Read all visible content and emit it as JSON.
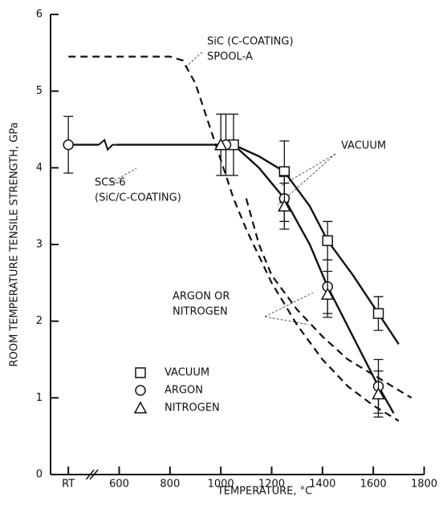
{
  "chart_data": {
    "type": "scatter",
    "xlabel": "TEMPERATURE, °C",
    "ylabel": "ROOM TEMPERATURE TENSILE STRENGTH, GPa",
    "xlim": [
      330,
      1800
    ],
    "ylim": [
      0,
      6
    ],
    "xticks": [
      {
        "value": 400,
        "label": "RT"
      },
      600,
      800,
      1000,
      1200,
      1400,
      1600,
      1800
    ],
    "yticks": [
      0,
      1,
      2,
      3,
      4,
      5,
      6
    ],
    "series": [
      {
        "name": "VACUUM",
        "marker": "square",
        "color": "#111",
        "x": [
          1050,
          1250,
          1420,
          1620
        ],
        "values": [
          4.3,
          3.95,
          3.05,
          2.1
        ],
        "errors": [
          0.4,
          0.4,
          0.25,
          0.22
        ]
      },
      {
        "name": "ARGON",
        "marker": "circle",
        "color": "#111",
        "x": [
          400,
          1020,
          1250,
          1420,
          1620
        ],
        "values": [
          4.3,
          4.3,
          3.6,
          2.45,
          1.15
        ],
        "errors": [
          0.37,
          0.4,
          0.3,
          0.35,
          0.35
        ]
      },
      {
        "name": "NITROGEN",
        "marker": "triangle",
        "color": "#111",
        "x": [
          1000,
          1250,
          1420,
          1620
        ],
        "values": [
          4.3,
          3.5,
          2.35,
          1.05
        ],
        "errors": [
          0.4,
          0.3,
          0.3,
          0.3
        ]
      }
    ],
    "curves": [
      {
        "dash": false,
        "x": [
          400,
          640,
          1000,
          1050,
          1150,
          1250,
          1350,
          1420,
          1520,
          1620,
          1700
        ],
        "values": [
          4.3,
          4.3,
          4.3,
          4.3,
          4.15,
          3.95,
          3.5,
          3.05,
          2.6,
          2.1,
          1.7
        ]
      },
      {
        "dash": false,
        "x": [
          1050,
          1150,
          1250,
          1350,
          1420,
          1520,
          1620,
          1680
        ],
        "values": [
          4.3,
          4.0,
          3.6,
          3.0,
          2.45,
          1.8,
          1.15,
          0.8
        ]
      },
      {
        "dash": true,
        "x": [
          400,
          800,
          850,
          900,
          950,
          1000,
          1050,
          1100,
          1200,
          1300,
          1400,
          1500,
          1600,
          1700
        ],
        "values": [
          5.45,
          5.45,
          5.4,
          5.1,
          4.6,
          4.1,
          3.6,
          3.2,
          2.5,
          1.95,
          1.5,
          1.15,
          0.9,
          0.7
        ]
      },
      {
        "dash": true,
        "x": [
          1100,
          1150,
          1200,
          1300,
          1400,
          1500,
          1600,
          1700,
          1750
        ],
        "values": [
          3.6,
          3.0,
          2.6,
          2.15,
          1.8,
          1.5,
          1.3,
          1.1,
          1.0
        ]
      }
    ],
    "annotations": [
      {
        "lines": [
          "SiC (C-COATING)",
          "SPOOL-A"
        ]
      },
      {
        "lines": [
          "SCS-6",
          "(SiC/C-COATING)"
        ]
      },
      {
        "lines": [
          "VACUUM"
        ]
      },
      {
        "lines": [
          "ARGON OR",
          "NITROGEN"
        ]
      }
    ]
  }
}
